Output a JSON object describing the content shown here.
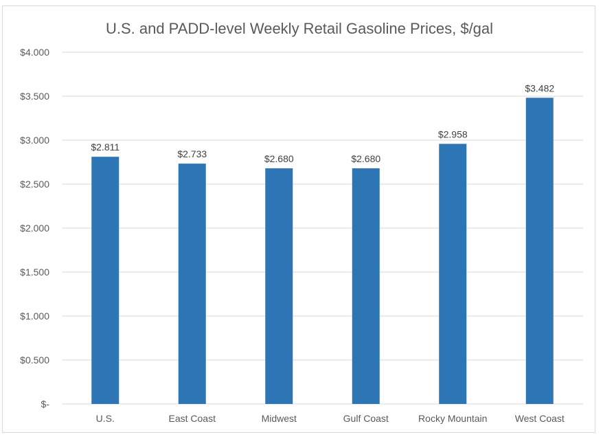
{
  "chart_data": {
    "type": "bar",
    "title": "U.S. and PADD-level Weekly Retail Gasoline Prices, $/gal",
    "xlabel": "",
    "ylabel": "",
    "categories": [
      "U.S.",
      "East Coast",
      "Midwest",
      "Gulf Coast",
      "Rocky Mountain",
      "West Coast"
    ],
    "values": [
      2.811,
      2.733,
      2.68,
      2.68,
      2.958,
      3.482
    ],
    "data_labels": [
      "$2.811",
      "$2.733",
      "$2.680",
      "$2.680",
      "$2.958",
      "$3.482"
    ],
    "ylim": [
      0,
      4.0
    ],
    "yticks": [
      0,
      0.5,
      1.0,
      1.5,
      2.0,
      2.5,
      3.0,
      3.5,
      4.0
    ],
    "ytick_labels": [
      "$-",
      "$0.500",
      "$1.000",
      "$1.500",
      "$2.000",
      "$2.500",
      "$3.000",
      "$3.500",
      "$4.000"
    ],
    "grid": true,
    "legend": "none",
    "bar_color": "#2e75b6",
    "grid_color": "#d9d9d9"
  }
}
